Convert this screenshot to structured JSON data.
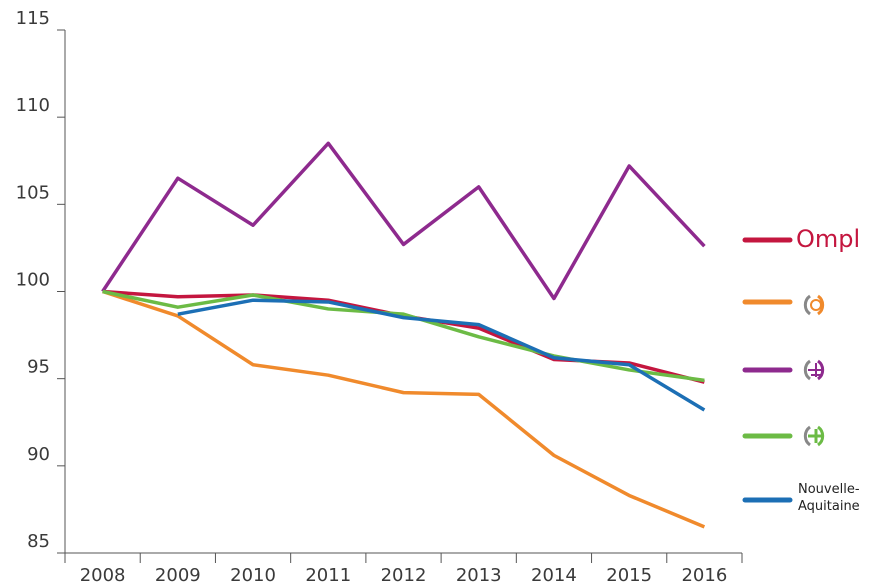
{
  "chart_data": {
    "type": "line",
    "categories": [
      "2008",
      "2009",
      "2010",
      "2011",
      "2012",
      "2013",
      "2014",
      "2015",
      "2016"
    ],
    "series": [
      {
        "name": "Ompl",
        "color": "#c4163f",
        "values": [
          100,
          99.7,
          99.8,
          99.5,
          98.6,
          97.9,
          96.1,
          95.9,
          94.8
        ]
      },
      {
        "color": "#f08a2c",
        "values": [
          100,
          98.6,
          95.8,
          95.2,
          94.2,
          94.1,
          90.6,
          88.3,
          86.5
        ]
      },
      {
        "color": "#8e2a8e",
        "values": [
          100,
          106.5,
          103.8,
          108.5,
          102.7,
          106,
          99.6,
          107.2,
          102.6
        ]
      },
      {
        "color": "#6cbb45",
        "values": [
          100,
          99.1,
          99.8,
          99.0,
          98.7,
          97.4,
          96.3,
          95.5,
          94.9
        ]
      },
      {
        "name": "Nouvelle-Aquitaine",
        "color": "#1c6fb5",
        "values": [
          null,
          98.7,
          99.5,
          99.4,
          98.5,
          98.1,
          96.2,
          95.8,
          93.2
        ]
      }
    ],
    "ylim": [
      85,
      115
    ],
    "yticks": [
      85,
      90,
      95,
      100,
      105,
      110,
      115
    ]
  }
}
